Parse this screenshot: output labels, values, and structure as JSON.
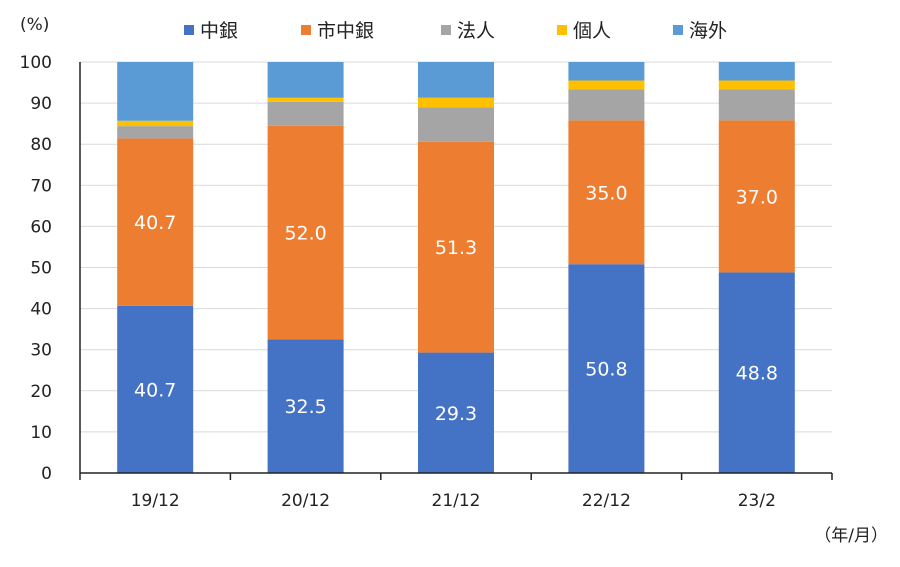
{
  "chart_data": {
    "type": "bar",
    "stacked": true,
    "title": "",
    "ylabel": "(%)",
    "xlabel": "（年/月）",
    "ylim": [
      0,
      100
    ],
    "yticks": [
      0,
      10,
      20,
      30,
      40,
      50,
      60,
      70,
      80,
      90,
      100
    ],
    "categories": [
      "19/12",
      "20/12",
      "21/12",
      "22/12",
      "23/2"
    ],
    "legend_position": "top",
    "grid": true,
    "series": [
      {
        "name": "中銀",
        "color": "#4472C4",
        "values": [
          40.7,
          32.5,
          29.3,
          50.8,
          48.8
        ],
        "labels": [
          "40.7",
          "32.5",
          "29.3",
          "50.8",
          "48.8"
        ]
      },
      {
        "name": "市中銀",
        "color": "#ED7D31",
        "values": [
          40.7,
          52.0,
          51.3,
          35.0,
          37.0
        ],
        "labels": [
          "40.7",
          "52.0",
          "51.3",
          "35.0",
          "37.0"
        ]
      },
      {
        "name": "法人",
        "color": "#A5A5A5",
        "values": [
          3.0,
          5.8,
          8.4,
          7.5,
          7.5
        ],
        "labels": null
      },
      {
        "name": "個人",
        "color": "#FFC000",
        "values": [
          1.3,
          1.0,
          2.3,
          2.2,
          2.2
        ],
        "labels": null
      },
      {
        "name": "海外",
        "color": "#5B9BD5",
        "values": [
          14.3,
          8.7,
          8.7,
          4.5,
          4.5
        ],
        "labels": null
      }
    ]
  }
}
